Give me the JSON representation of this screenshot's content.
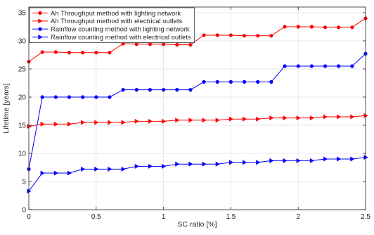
{
  "chart_data": {
    "type": "line",
    "xlabel": "SC ratio [%]",
    "ylabel": "Lifetime [years]",
    "xlim": [
      0,
      2.5
    ],
    "ylim": [
      0,
      36
    ],
    "xticks": [
      0,
      0.5,
      1,
      1.5,
      2,
      2.5
    ],
    "xtick_labels": [
      "0",
      "0.5",
      "1",
      "1.5",
      "2",
      "2.5"
    ],
    "yticks": [
      0,
      5,
      10,
      15,
      20,
      25,
      30,
      35
    ],
    "ytick_labels": [
      "0",
      "5",
      "10",
      "15",
      "20",
      "25",
      "30",
      "35"
    ],
    "grid": true,
    "legend_position": "top-left",
    "x": [
      0,
      0.1,
      0.2,
      0.3,
      0.4,
      0.5,
      0.6,
      0.7,
      0.8,
      0.9,
      1.0,
      1.1,
      1.2,
      1.3,
      1.4,
      1.5,
      1.6,
      1.7,
      1.8,
      1.9,
      2.0,
      2.1,
      2.2,
      2.3,
      2.4,
      2.5
    ],
    "series": [
      {
        "name": "Ah Throughput method with lighting network",
        "color": "#ff0000",
        "marker": "circle",
        "values": [
          26.3,
          28.0,
          28.0,
          27.9,
          27.9,
          27.9,
          27.9,
          29.5,
          29.4,
          29.4,
          29.4,
          29.3,
          29.3,
          31.0,
          31.0,
          31.0,
          30.9,
          30.9,
          30.9,
          32.5,
          32.5,
          32.5,
          32.4,
          32.4,
          32.4,
          34.0
        ]
      },
      {
        "name": "Ah Throughput method with electrical outlets",
        "color": "#ff0000",
        "marker": "triangle-right",
        "values": [
          14.8,
          15.2,
          15.2,
          15.2,
          15.5,
          15.5,
          15.5,
          15.5,
          15.7,
          15.7,
          15.7,
          15.9,
          15.9,
          15.9,
          15.9,
          16.1,
          16.1,
          16.1,
          16.3,
          16.3,
          16.3,
          16.3,
          16.5,
          16.5,
          16.5,
          16.7
        ]
      },
      {
        "name": "Rainflow counting method with lighting network",
        "color": "#0000ff",
        "marker": "circle",
        "values": [
          7.2,
          20.0,
          20.0,
          20.0,
          20.0,
          20.0,
          20.0,
          21.3,
          21.3,
          21.3,
          21.3,
          21.3,
          21.3,
          22.7,
          22.7,
          22.7,
          22.7,
          22.7,
          22.7,
          25.5,
          25.5,
          25.5,
          25.5,
          25.5,
          25.5,
          27.7
        ]
      },
      {
        "name": "Rainflow counting method with electrical outlets",
        "color": "#0000ff",
        "marker": "triangle-right",
        "values": [
          3.3,
          6.5,
          6.5,
          6.5,
          7.2,
          7.2,
          7.2,
          7.2,
          7.7,
          7.7,
          7.7,
          8.1,
          8.1,
          8.1,
          8.1,
          8.4,
          8.4,
          8.4,
          8.7,
          8.7,
          8.7,
          8.7,
          9.0,
          9.0,
          9.0,
          9.3
        ]
      }
    ]
  }
}
